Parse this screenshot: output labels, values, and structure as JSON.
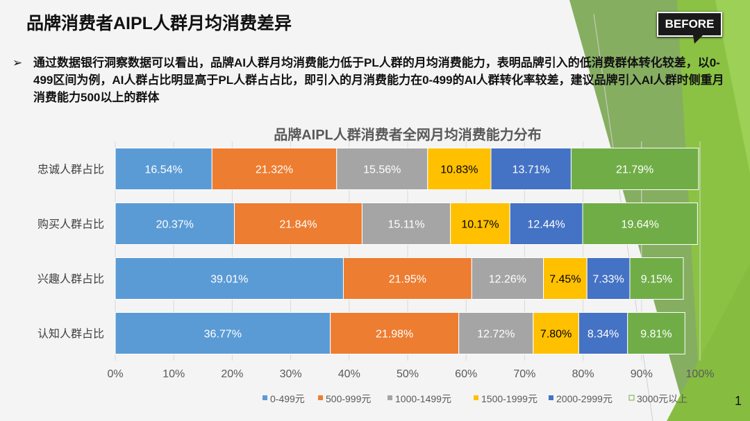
{
  "header": {
    "title": "品牌消费者AIPL人群月均消费差异",
    "badge": "BEFORE"
  },
  "bullet": {
    "icon": "arrow-bullet-icon",
    "text": "通过数据银行洞察数据可以看出，品牌AI人群月均消费能力低于PL人群的月均消费能力，表明品牌引入的低消费群体转化较差，以0-499区间为例，AI人群占比明显高于PL人群占占比，即引入的月消费能力在0-499的AI人群转化率较差，建议品牌引入AI人群时侧重月消费能力500以上的群体"
  },
  "page_number": "1",
  "chart_data": {
    "type": "bar",
    "orientation": "horizontal",
    "stacked": "percent",
    "title": "品牌AIPL人群消费者全网月均消费能力分布",
    "categories": [
      "忠诚人群占比",
      "购买人群占比",
      "兴趣人群占比",
      "认知人群占比"
    ],
    "series": [
      {
        "name": "0-499元",
        "color": "#5b9bd5",
        "values": [
          16.54,
          20.37,
          39.01,
          36.77
        ],
        "labels": [
          "16.54%",
          "20.37%",
          "39.01%",
          "36.77%"
        ]
      },
      {
        "name": "500-999元",
        "color": "#ed7d31",
        "values": [
          21.32,
          21.84,
          21.95,
          21.98
        ],
        "labels": [
          "21.32%",
          "21.84%",
          "21.95%",
          "21.98%"
        ]
      },
      {
        "name": "1000-1499元",
        "color": "#a5a5a5",
        "values": [
          15.56,
          15.11,
          12.26,
          12.72
        ],
        "labels": [
          "15.56%",
          "15.11%",
          "12.26%",
          "12.72%"
        ]
      },
      {
        "name": "1500-1999元",
        "color": "#ffc000",
        "values": [
          10.83,
          10.17,
          7.45,
          7.8
        ],
        "labels": [
          "10.83%",
          "10.17%",
          "7.45%",
          "7.80%"
        ]
      },
      {
        "name": "2000-2999元",
        "color": "#4472c4",
        "values": [
          13.71,
          12.44,
          7.33,
          8.34
        ],
        "labels": [
          "13.71%",
          "12.44%",
          "7.33%",
          "8.34%"
        ]
      },
      {
        "name": "3000元以上",
        "color": "#70ad47",
        "values": [
          21.79,
          19.64,
          9.15,
          9.81
        ],
        "labels": [
          "21.79%",
          "19.64%",
          "9.15%",
          "9.81%"
        ]
      }
    ],
    "xlim": [
      0,
      100
    ],
    "xticks": [
      "0%",
      "10%",
      "20%",
      "30%",
      "40%",
      "50%",
      "60%",
      "70%",
      "80%",
      "90%",
      "100%"
    ],
    "grid": true,
    "legend": "bottom"
  }
}
